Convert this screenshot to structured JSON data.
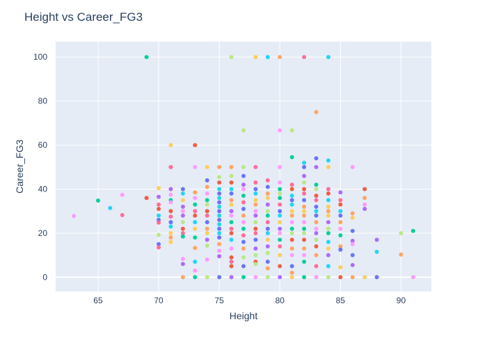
{
  "chart_data": {
    "type": "scatter",
    "title": "Height vs Career_FG3",
    "xlabel": "Height",
    "ylabel": "Career_FG3",
    "xlim": [
      61.5,
      92.5
    ],
    "ylim": [
      -6.5,
      107
    ],
    "x_ticks": [
      65,
      70,
      75,
      80,
      85,
      90
    ],
    "y_ticks": [
      0,
      20,
      40,
      60,
      80,
      100
    ],
    "grid": true,
    "colors": [
      "#636efa",
      "#ef553b",
      "#00cc96",
      "#ab63fa",
      "#ffa15a",
      "#19d3f3",
      "#ff6692",
      "#b6e880",
      "#ff97ff",
      "#fecb52"
    ],
    "points": [
      [
        63,
        27.8
      ],
      [
        65,
        34.8
      ],
      [
        66,
        31.4
      ],
      [
        67,
        37.4
      ],
      [
        67,
        28.2
      ],
      [
        69,
        36.0
      ],
      [
        69,
        100
      ],
      [
        70,
        40.4
      ],
      [
        70,
        36.5
      ],
      [
        70,
        33.0
      ],
      [
        70,
        31.0
      ],
      [
        70,
        28.0
      ],
      [
        70,
        26.0
      ],
      [
        70,
        24.8
      ],
      [
        70,
        19.2
      ],
      [
        70,
        15.0
      ],
      [
        70,
        13.5
      ],
      [
        71,
        60.0
      ],
      [
        71,
        50.0
      ],
      [
        71,
        40.0
      ],
      [
        71,
        37.5
      ],
      [
        71,
        35.0
      ],
      [
        71,
        34.0
      ],
      [
        71,
        30.0
      ],
      [
        71,
        27.5
      ],
      [
        71,
        25.0
      ],
      [
        71,
        23.0
      ],
      [
        71,
        20.0
      ],
      [
        71,
        18.0
      ],
      [
        71,
        16.0
      ],
      [
        72,
        40.0
      ],
      [
        72,
        38.0
      ],
      [
        72,
        35.0
      ],
      [
        72,
        32.0
      ],
      [
        72,
        30.0
      ],
      [
        72,
        28.0
      ],
      [
        72,
        25.0
      ],
      [
        72,
        22.0
      ],
      [
        72,
        20.0
      ],
      [
        72,
        18.5
      ],
      [
        72,
        8.3
      ],
      [
        72,
        6.0
      ],
      [
        72,
        0
      ],
      [
        73,
        60.0
      ],
      [
        73,
        50.0
      ],
      [
        73,
        38.5
      ],
      [
        73,
        36.0
      ],
      [
        73,
        33.0
      ],
      [
        73,
        30.0
      ],
      [
        73,
        28.0
      ],
      [
        73,
        25.0
      ],
      [
        73,
        22.0
      ],
      [
        73,
        18.0
      ],
      [
        73,
        13.3
      ],
      [
        73,
        7.0
      ],
      [
        73,
        3.0
      ],
      [
        73,
        0
      ],
      [
        74,
        50.0
      ],
      [
        74,
        44.0
      ],
      [
        74,
        41.0
      ],
      [
        74,
        38.0
      ],
      [
        74,
        35.0
      ],
      [
        74,
        33.0
      ],
      [
        74,
        30.0
      ],
      [
        74,
        28.0
      ],
      [
        74,
        25.0
      ],
      [
        74,
        22.0
      ],
      [
        74,
        20.0
      ],
      [
        74,
        17.0
      ],
      [
        74,
        14.3
      ],
      [
        74,
        8.0
      ],
      [
        74,
        0
      ],
      [
        75,
        50.0
      ],
      [
        75,
        45.5
      ],
      [
        75,
        43.0
      ],
      [
        75,
        40.0
      ],
      [
        75,
        38.0
      ],
      [
        75,
        36.0
      ],
      [
        75,
        34.0
      ],
      [
        75,
        32.0
      ],
      [
        75,
        30.0
      ],
      [
        75,
        28.0
      ],
      [
        75,
        26.0
      ],
      [
        75,
        24.0
      ],
      [
        75,
        22.0
      ],
      [
        75,
        20.0
      ],
      [
        75,
        18.0
      ],
      [
        75,
        15.0
      ],
      [
        75,
        12.0
      ],
      [
        75,
        9.5
      ],
      [
        75,
        0
      ],
      [
        76,
        100
      ],
      [
        76,
        50.0
      ],
      [
        76,
        46.0
      ],
      [
        76,
        43.0
      ],
      [
        76,
        40.0
      ],
      [
        76,
        38.0
      ],
      [
        76,
        35.0
      ],
      [
        76,
        33.0
      ],
      [
        76,
        30.0
      ],
      [
        76,
        28.0
      ],
      [
        76,
        25.0
      ],
      [
        76,
        22.0
      ],
      [
        76,
        20.0
      ],
      [
        76,
        17.0
      ],
      [
        76,
        13.0
      ],
      [
        76,
        9.0
      ],
      [
        76,
        7.0
      ],
      [
        76,
        5.0
      ],
      [
        76,
        0
      ],
      [
        77,
        66.7
      ],
      [
        77,
        50.0
      ],
      [
        77,
        46.0
      ],
      [
        77,
        42.0
      ],
      [
        77,
        40.0
      ],
      [
        77,
        37.0
      ],
      [
        77,
        34.0
      ],
      [
        77,
        31.0
      ],
      [
        77,
        28.0
      ],
      [
        77,
        25.0
      ],
      [
        77,
        22.0
      ],
      [
        77,
        19.0
      ],
      [
        77,
        16.0
      ],
      [
        77,
        13.0
      ],
      [
        77,
        9.0
      ],
      [
        77,
        5.0
      ],
      [
        77,
        0
      ],
      [
        78,
        100
      ],
      [
        78,
        50.0
      ],
      [
        78,
        43.0
      ],
      [
        78,
        40.0
      ],
      [
        78,
        38.0
      ],
      [
        78,
        35.0
      ],
      [
        78,
        33.0
      ],
      [
        78,
        30.0
      ],
      [
        78,
        28.0
      ],
      [
        78,
        25.0
      ],
      [
        78,
        22.0
      ],
      [
        78,
        20.0
      ],
      [
        78,
        17.0
      ],
      [
        78,
        13.0
      ],
      [
        78,
        10.0
      ],
      [
        78,
        7.0
      ],
      [
        78,
        6.0
      ],
      [
        78,
        0
      ],
      [
        79,
        100
      ],
      [
        79,
        44.0
      ],
      [
        79,
        41.0
      ],
      [
        79,
        38.0
      ],
      [
        79,
        36.0
      ],
      [
        79,
        33.0
      ],
      [
        79,
        30.0
      ],
      [
        79,
        28.0
      ],
      [
        79,
        25.0
      ],
      [
        79,
        22.0
      ],
      [
        79,
        20.0
      ],
      [
        79,
        17.0
      ],
      [
        79,
        14.0
      ],
      [
        79,
        11.0
      ],
      [
        79,
        7.0
      ],
      [
        79,
        4.0
      ],
      [
        79,
        0
      ],
      [
        80,
        100
      ],
      [
        80,
        66.7
      ],
      [
        80,
        50.0
      ],
      [
        80,
        43.0
      ],
      [
        80,
        40.0
      ],
      [
        80,
        38.0
      ],
      [
        80,
        36.0
      ],
      [
        80,
        33.0
      ],
      [
        80,
        30.0
      ],
      [
        80,
        28.0
      ],
      [
        80,
        25.0
      ],
      [
        80,
        22.0
      ],
      [
        80,
        20.0
      ],
      [
        80,
        17.0
      ],
      [
        80,
        14.0
      ],
      [
        80,
        10.0
      ],
      [
        80,
        5.0
      ],
      [
        80,
        0
      ],
      [
        81,
        66.7
      ],
      [
        81,
        54.5
      ],
      [
        81,
        42.0
      ],
      [
        81,
        40.0
      ],
      [
        81,
        37.0
      ],
      [
        81,
        35.0
      ],
      [
        81,
        33.0
      ],
      [
        81,
        30.0
      ],
      [
        81,
        28.0
      ],
      [
        81,
        25.0
      ],
      [
        81,
        22.0
      ],
      [
        81,
        20.0
      ],
      [
        81,
        17.0
      ],
      [
        81,
        13.0
      ],
      [
        81,
        10.0
      ],
      [
        81,
        5.0
      ],
      [
        81,
        2.0
      ],
      [
        81,
        0
      ],
      [
        82,
        100
      ],
      [
        82,
        52.0
      ],
      [
        82,
        50.0
      ],
      [
        82,
        46.0
      ],
      [
        82,
        43.0
      ],
      [
        82,
        40.0
      ],
      [
        82,
        38.0
      ],
      [
        82,
        35.0
      ],
      [
        82,
        32.0
      ],
      [
        82,
        30.0
      ],
      [
        82,
        28.0
      ],
      [
        82,
        25.0
      ],
      [
        82,
        22.0
      ],
      [
        82,
        20.0
      ],
      [
        82,
        17.0
      ],
      [
        82,
        13.0
      ],
      [
        82,
        10.0
      ],
      [
        82,
        7.0
      ],
      [
        82,
        0
      ],
      [
        83,
        75.0
      ],
      [
        83,
        54.0
      ],
      [
        83,
        50.0
      ],
      [
        83,
        42.0
      ],
      [
        83,
        40.0
      ],
      [
        83,
        37.0
      ],
      [
        83,
        35.0
      ],
      [
        83,
        32.0
      ],
      [
        83,
        30.0
      ],
      [
        83,
        28.0
      ],
      [
        83,
        25.0
      ],
      [
        83,
        22.0
      ],
      [
        83,
        20.0
      ],
      [
        83,
        17.0
      ],
      [
        83,
        14.0
      ],
      [
        83,
        10.0
      ],
      [
        83,
        5.0
      ],
      [
        83,
        0
      ],
      [
        84,
        100
      ],
      [
        84,
        53.0
      ],
      [
        84,
        50.0
      ],
      [
        84,
        40.0
      ],
      [
        84,
        38.0
      ],
      [
        84,
        35.0
      ],
      [
        84,
        32.0
      ],
      [
        84,
        30.0
      ],
      [
        84,
        28.0
      ],
      [
        84,
        25.0
      ],
      [
        84,
        22.0
      ],
      [
        84,
        20.0
      ],
      [
        84,
        16.0
      ],
      [
        84,
        13.0
      ],
      [
        84,
        10.0
      ],
      [
        84,
        5.0
      ],
      [
        84,
        0
      ],
      [
        85,
        38.5
      ],
      [
        85,
        35.0
      ],
      [
        85,
        33.0
      ],
      [
        85,
        30.0
      ],
      [
        85,
        28.0
      ],
      [
        85,
        25.0
      ],
      [
        85,
        22.0
      ],
      [
        85,
        19.0
      ],
      [
        85,
        14.0
      ],
      [
        85,
        12.5
      ],
      [
        85,
        4.5
      ],
      [
        85,
        0
      ],
      [
        86,
        50.0
      ],
      [
        86,
        29.0
      ],
      [
        86,
        27.0
      ],
      [
        86,
        21.0
      ],
      [
        86,
        16.5
      ],
      [
        86,
        15.0
      ],
      [
        86,
        10.0
      ],
      [
        86,
        5.5
      ],
      [
        86,
        0
      ],
      [
        87,
        40.0
      ],
      [
        87,
        36.0
      ],
      [
        87,
        33.0
      ],
      [
        87,
        31.0
      ],
      [
        87,
        0
      ],
      [
        88,
        17.0
      ],
      [
        88,
        11.5
      ],
      [
        88,
        0
      ],
      [
        90,
        20.0
      ],
      [
        90,
        10.3
      ],
      [
        91,
        21.0
      ],
      [
        91,
        0
      ]
    ]
  }
}
